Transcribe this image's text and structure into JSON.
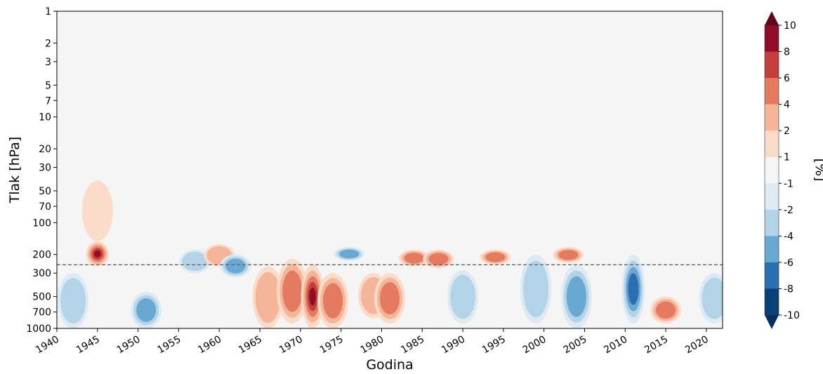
{
  "chart_data": {
    "type": "heatmap",
    "xlabel": "Godina",
    "ylabel": "Tlak [hPa]",
    "x_range": [
      1940,
      2022
    ],
    "x_ticks": [
      1940,
      1945,
      1950,
      1955,
      1960,
      1965,
      1970,
      1975,
      1980,
      1985,
      1990,
      1995,
      2000,
      2005,
      2010,
      2015,
      2020
    ],
    "y_scale": "log",
    "y_inverted": true,
    "y_range": [
      1000,
      1
    ],
    "y_ticks": [
      1,
      2,
      3,
      5,
      7,
      10,
      20,
      30,
      50,
      70,
      100,
      200,
      300,
      500,
      700,
      1000
    ],
    "reference_line": {
      "pressure": 250,
      "style": "dashed",
      "color": "#666666"
    },
    "colorbar": {
      "label": "[%]",
      "ticks": [
        10,
        8,
        6,
        4,
        2,
        1,
        -1,
        -2,
        -4,
        -6,
        -8,
        -10
      ],
      "levels": [
        -10,
        -8,
        -6,
        -4,
        -2,
        -1,
        1,
        2,
        4,
        6,
        8,
        10
      ],
      "colors": [
        "#0b3f7a",
        "#2a6fb0",
        "#68a8d2",
        "#b3d3e8",
        "#ddeaf3",
        "#f5f5f5",
        "#fbdccb",
        "#f4b598",
        "#e47b60",
        "#c53e3d",
        "#8e0c25"
      ],
      "extend": "both"
    },
    "features": [
      {
        "year": 1945,
        "p_top": 40,
        "p_bottom": 150,
        "value": 1.5
      },
      {
        "year": 1945,
        "p_top": 150,
        "p_bottom": 260,
        "value": 9
      },
      {
        "year": 1942,
        "p_top": 300,
        "p_bottom": 1000,
        "value": -3
      },
      {
        "year": 1951,
        "p_top": 450,
        "p_bottom": 1000,
        "value": -6
      },
      {
        "year": 1957,
        "p_top": 180,
        "p_bottom": 300,
        "value": -3
      },
      {
        "year": 1960,
        "p_top": 160,
        "p_bottom": 260,
        "value": 3
      },
      {
        "year": 1962,
        "p_top": 200,
        "p_bottom": 330,
        "value": -5
      },
      {
        "year": 1966,
        "p_top": 260,
        "p_bottom": 1000,
        "value": 3
      },
      {
        "year": 1969,
        "p_top": 220,
        "p_bottom": 900,
        "value": 5
      },
      {
        "year": 1971.5,
        "p_top": 250,
        "p_bottom": 1000,
        "value": 10
      },
      {
        "year": 1974,
        "p_top": 300,
        "p_bottom": 1000,
        "value": 6
      },
      {
        "year": 1976,
        "p_top": 170,
        "p_bottom": 230,
        "value": -5
      },
      {
        "year": 1979,
        "p_top": 300,
        "p_bottom": 800,
        "value": 3
      },
      {
        "year": 1981,
        "p_top": 300,
        "p_bottom": 900,
        "value": 5
      },
      {
        "year": 1984,
        "p_top": 180,
        "p_bottom": 260,
        "value": 6
      },
      {
        "year": 1987,
        "p_top": 180,
        "p_bottom": 270,
        "value": 6
      },
      {
        "year": 1990,
        "p_top": 280,
        "p_bottom": 900,
        "value": -3
      },
      {
        "year": 1994,
        "p_top": 180,
        "p_bottom": 250,
        "value": 6
      },
      {
        "year": 1999,
        "p_top": 200,
        "p_bottom": 900,
        "value": -3
      },
      {
        "year": 2003,
        "p_top": 170,
        "p_bottom": 240,
        "value": 6
      },
      {
        "year": 2004,
        "p_top": 250,
        "p_bottom": 1000,
        "value": -6
      },
      {
        "year": 2011,
        "p_top": 200,
        "p_bottom": 900,
        "value": -7
      },
      {
        "year": 2015,
        "p_top": 500,
        "p_bottom": 900,
        "value": 6
      },
      {
        "year": 2021,
        "p_top": 300,
        "p_bottom": 900,
        "value": -4
      }
    ]
  }
}
